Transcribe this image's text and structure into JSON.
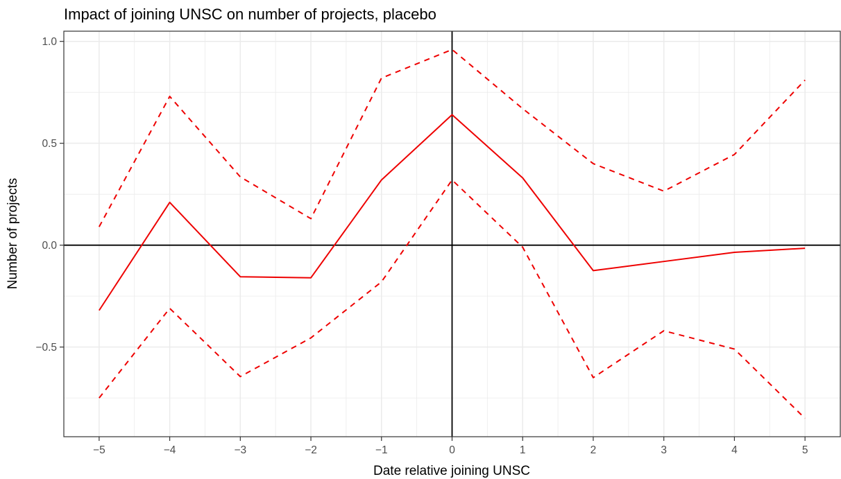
{
  "chart_data": {
    "type": "line",
    "title": "Impact of joining UNSC on number of projects, placebo",
    "xlabel": "Date relative joining UNSC",
    "ylabel": "Number of projects",
    "x": [
      -5,
      -4,
      -3,
      -2,
      -1,
      0,
      1,
      2,
      3,
      4,
      5
    ],
    "xlim": [
      -5.5,
      5.5
    ],
    "ylim": [
      -0.94,
      1.05
    ],
    "x_ticks": [
      -5,
      -4,
      -3,
      -2,
      -1,
      0,
      1,
      2,
      3,
      4,
      5
    ],
    "x_tick_labels": [
      "−5",
      "−4",
      "−3",
      "−2",
      "−1",
      "0",
      "1",
      "2",
      "3",
      "4",
      "5"
    ],
    "y_ticks": [
      -0.5,
      0.0,
      0.5,
      1.0
    ],
    "y_tick_labels": [
      "−0.5",
      "0.0",
      "0.5",
      "1.0"
    ],
    "grid": true,
    "reference_lines": {
      "x": 0,
      "y": 0
    },
    "series": [
      {
        "role": "estimate",
        "style": "solid",
        "color": "#ee0000",
        "values": [
          -0.32,
          0.21,
          -0.155,
          -0.16,
          0.32,
          0.64,
          0.33,
          -0.125,
          -0.08,
          -0.035,
          -0.015
        ]
      },
      {
        "role": "upper-bound",
        "style": "dashed",
        "color": "#ee0000",
        "values": [
          0.09,
          0.73,
          0.335,
          0.13,
          0.82,
          0.96,
          0.67,
          0.4,
          0.265,
          0.445,
          0.81
        ]
      },
      {
        "role": "lower-bound",
        "style": "dashed",
        "color": "#ee0000",
        "values": [
          -0.75,
          -0.31,
          -0.645,
          -0.455,
          -0.18,
          0.32,
          -0.01,
          -0.65,
          -0.42,
          -0.51,
          -0.85
        ]
      }
    ]
  }
}
